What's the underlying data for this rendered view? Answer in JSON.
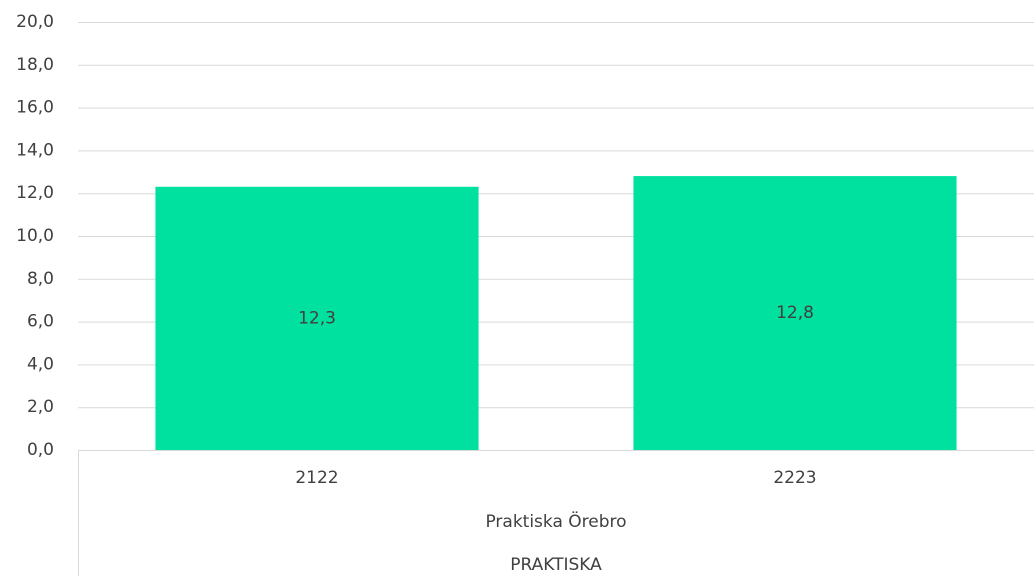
{
  "chart_data": {
    "type": "bar",
    "categories": [
      "2122",
      "2223"
    ],
    "category_levels": [
      "Praktiska Örebro",
      "PRAKTISKA"
    ],
    "values": [
      12.3,
      12.8
    ],
    "value_labels": [
      "12,3",
      "12,8"
    ],
    "color": "#00e09e",
    "ylim": [
      0,
      20
    ],
    "yticks": [
      {
        "value": 0,
        "label": "0,0"
      },
      {
        "value": 2,
        "label": "2,0"
      },
      {
        "value": 4,
        "label": "4,0"
      },
      {
        "value": 6,
        "label": "6,0"
      },
      {
        "value": 8,
        "label": "8,0"
      },
      {
        "value": 10,
        "label": "10,0"
      },
      {
        "value": 12,
        "label": "12,0"
      },
      {
        "value": 14,
        "label": "14,0"
      },
      {
        "value": 16,
        "label": "16,0"
      },
      {
        "value": 18,
        "label": "18,0"
      },
      {
        "value": 20,
        "label": "20,0"
      }
    ],
    "grid": true
  }
}
